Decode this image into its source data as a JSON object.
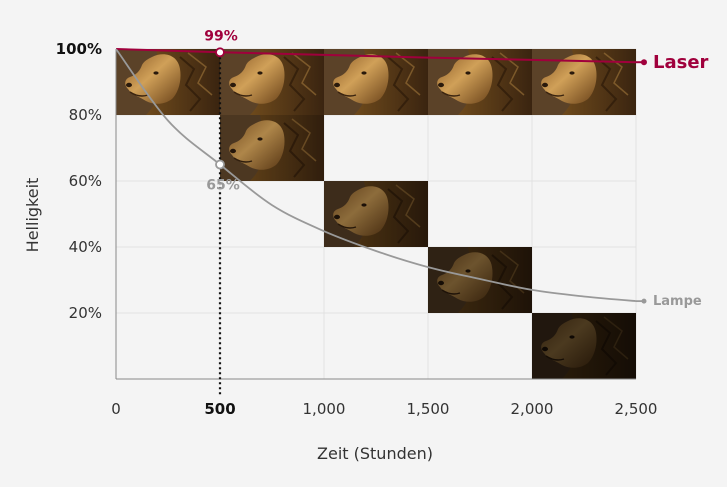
{
  "chart_data": {
    "type": "line",
    "xlabel": "Zeit (Stunden)",
    "ylabel": "Helligkeit",
    "xlim": [
      0,
      2500
    ],
    "ylim": [
      0,
      100
    ],
    "x_ticks": [
      {
        "value": 0,
        "label": "0"
      },
      {
        "value": 500,
        "label": "500",
        "bold": true
      },
      {
        "value": 1000,
        "label": "1,000"
      },
      {
        "value": 1500,
        "label": "1,500"
      },
      {
        "value": 2000,
        "label": "2,000"
      },
      {
        "value": 2500,
        "label": "2,500"
      }
    ],
    "y_ticks": [
      {
        "value": 20,
        "label": "20%"
      },
      {
        "value": 40,
        "label": "40%"
      },
      {
        "value": 60,
        "label": "60%"
      },
      {
        "value": 80,
        "label": "80%"
      },
      {
        "value": 100,
        "label": "100%",
        "bold": true
      }
    ],
    "grid": true,
    "series": [
      {
        "name": "Laser",
        "color": "#a0003c",
        "x": [
          0,
          500,
          1000,
          1500,
          2000,
          2500
        ],
        "y": [
          100,
          99,
          98.2,
          97.4,
          96.7,
          96
        ]
      },
      {
        "name": "Lampe",
        "color": "#999999",
        "x": [
          0,
          250,
          500,
          750,
          1000,
          1250,
          1500,
          1750,
          2000,
          2250,
          2500
        ],
        "y": [
          100,
          78.3,
          65,
          52.7,
          44.8,
          38.8,
          33.9,
          30.3,
          27,
          25,
          23.6
        ]
      }
    ],
    "annotations": [
      {
        "x": 500,
        "y": 99,
        "text": "99%",
        "series": "Laser"
      },
      {
        "x": 500,
        "y": 65,
        "text": "65%",
        "series": "Lampe"
      }
    ],
    "marker_line_x": 500,
    "image_tiles": [
      {
        "x_start": 0,
        "x_end": 500,
        "brightness": 100,
        "row": 1
      },
      {
        "x_start": 500,
        "x_end": 1000,
        "brightness": 100,
        "row": 1
      },
      {
        "x_start": 1000,
        "x_end": 1500,
        "brightness": 100,
        "row": 1
      },
      {
        "x_start": 1500,
        "x_end": 2000,
        "brightness": 100,
        "row": 1
      },
      {
        "x_start": 2000,
        "x_end": 2500,
        "brightness": 100,
        "row": 1
      },
      {
        "x_start": 500,
        "x_end": 1000,
        "brightness": 80,
        "row": 2
      },
      {
        "x_start": 1000,
        "x_end": 1500,
        "brightness": 60,
        "row": 3
      },
      {
        "x_start": 1500,
        "x_end": 2000,
        "brightness": 40,
        "row": 4
      },
      {
        "x_start": 2000,
        "x_end": 2500,
        "brightness": 20,
        "row": 5
      }
    ]
  }
}
